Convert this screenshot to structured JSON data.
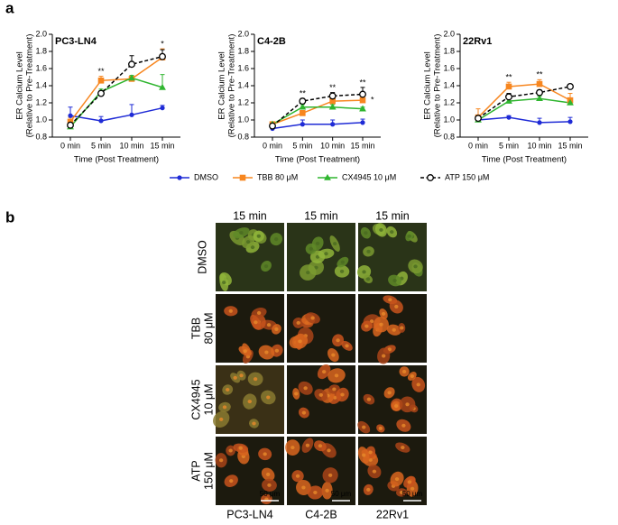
{
  "panel_labels": [
    "a",
    "b"
  ],
  "legend": {
    "position": "bottom",
    "entries": [
      {
        "name": "DMSO",
        "color": "#1f2bd6",
        "marker": "circle",
        "dashed": false
      },
      {
        "name": "TBB 80 μM",
        "color": "#f7861f",
        "marker": "square",
        "dashed": false
      },
      {
        "name": "CX4945 10 μM",
        "color": "#2fb52f",
        "marker": "triangle",
        "dashed": false
      },
      {
        "name": "ATP 150 μM",
        "color": "#000000",
        "marker": "open-circle",
        "dashed": true
      }
    ]
  },
  "chart_data": [
    {
      "type": "line",
      "title": "PC3-LN4",
      "ylabel": [
        "ER Calcium Level",
        "(Relative to Pre-Treatment)"
      ],
      "xlabel": "Time (Post Treatment)",
      "categories": [
        "0 min",
        "5 min",
        "10 min",
        "15 min"
      ],
      "ylim": [
        0.8,
        2.0
      ],
      "yticks": [
        0.8,
        {
          "value": 1,
          "label": "1.0"
        },
        1.2,
        1.4,
        1.6,
        1.8,
        {
          "value": 2,
          "label": "2.0"
        }
      ],
      "series": [
        {
          "values": [
            1.05,
            0.99,
            1.06,
            1.14
          ],
          "errors": [
            0.1,
            0.05,
            0.12,
            0.03
          ]
        },
        {
          "values": [
            0.98,
            1.46,
            1.48,
            1.73
          ],
          "errors": [
            0.05,
            0.05,
            0.03,
            0.1
          ]
        },
        {
          "values": [
            0.92,
            1.33,
            1.49,
            1.38
          ],
          "errors": [
            0.03,
            0.03,
            0.03,
            0.15
          ]
        },
        {
          "values": [
            0.94,
            1.31,
            1.65,
            1.74
          ],
          "errors": [
            0.03,
            0.03,
            0.1,
            0.08
          ]
        }
      ],
      "annotations": [
        {
          "text": "**",
          "at": "5 min"
        },
        {
          "text": "*",
          "at": "15 min"
        }
      ]
    },
    {
      "type": "line",
      "title": "C4-2B",
      "ylabel": [
        "ER Calcium Level",
        "(Relative to Pre-Treatment)"
      ],
      "xlabel": "Time (Post Treatment)",
      "categories": [
        "0 min",
        "5 min",
        "10 min",
        "15 min"
      ],
      "ylim": [
        0.8,
        2.0
      ],
      "yticks": [
        0.8,
        {
          "value": 1,
          "label": "1.0"
        },
        1.2,
        1.4,
        1.6,
        1.8,
        {
          "value": 2,
          "label": "2.0"
        }
      ],
      "series": [
        {
          "values": [
            0.9,
            0.95,
            0.95,
            0.97
          ],
          "errors": [
            0.03,
            0.05,
            0.05,
            0.04
          ]
        },
        {
          "values": [
            0.95,
            1.08,
            1.22,
            1.23
          ],
          "errors": [
            0.03,
            0.03,
            0.03,
            0.04
          ]
        },
        {
          "values": [
            0.95,
            1.15,
            1.15,
            1.13
          ],
          "errors": [
            0.02,
            0.03,
            0.03,
            0.02
          ]
        },
        {
          "values": [
            0.93,
            1.22,
            1.28,
            1.3
          ],
          "errors": [
            0.03,
            0.03,
            0.04,
            0.08
          ]
        }
      ],
      "annotations": [
        {
          "text": "**",
          "at": "5 min"
        },
        {
          "text": "**",
          "at": "10 min"
        },
        {
          "text": "**",
          "at": "15 min"
        },
        {
          "text": "*",
          "at": "15 min"
        }
      ]
    },
    {
      "type": "line",
      "title": "22Rv1",
      "ylabel": [
        "ER Calcium Level",
        "(Relative to Pre-Treatment)"
      ],
      "xlabel": "Time (Post Treatment)",
      "categories": [
        "0 min",
        "5 min",
        "10 min",
        "15 min"
      ],
      "ylim": [
        0.8,
        2.0
      ],
      "yticks": [
        0.8,
        {
          "value": 1,
          "label": "1.0"
        },
        1.2,
        1.4,
        1.6,
        1.8,
        {
          "value": 2,
          "label": "2.0"
        }
      ],
      "series": [
        {
          "values": [
            1.0,
            1.03,
            0.97,
            0.98
          ],
          "errors": [
            0.02,
            0.02,
            0.05,
            0.05
          ]
        },
        {
          "values": [
            1.03,
            1.39,
            1.42,
            1.23
          ],
          "errors": [
            0.1,
            0.05,
            0.05,
            0.08
          ]
        },
        {
          "values": [
            1.0,
            1.22,
            1.25,
            1.2
          ],
          "errors": [
            0.02,
            0.03,
            0.03,
            0.03
          ]
        },
        {
          "values": [
            1.02,
            1.27,
            1.32,
            1.39
          ],
          "errors": [
            0.03,
            0.04,
            0.03,
            0.02
          ]
        }
      ],
      "annotations": [
        {
          "text": "**",
          "at": "5 min"
        },
        {
          "text": "**",
          "at": "10 min"
        }
      ]
    }
  ],
  "panel_b": {
    "column_headers": [
      "15 min",
      "15 min",
      "15 min"
    ],
    "row_labels": [
      [
        "DMSO"
      ],
      [
        "TBB",
        "80 μM"
      ],
      [
        "CX4945",
        "10 μM"
      ],
      [
        "ATP",
        "150 μM"
      ]
    ],
    "column_labels": [
      "PC3-LN4",
      "C4-2B",
      "22Rv1"
    ],
    "scale_bar": "50 μm"
  }
}
